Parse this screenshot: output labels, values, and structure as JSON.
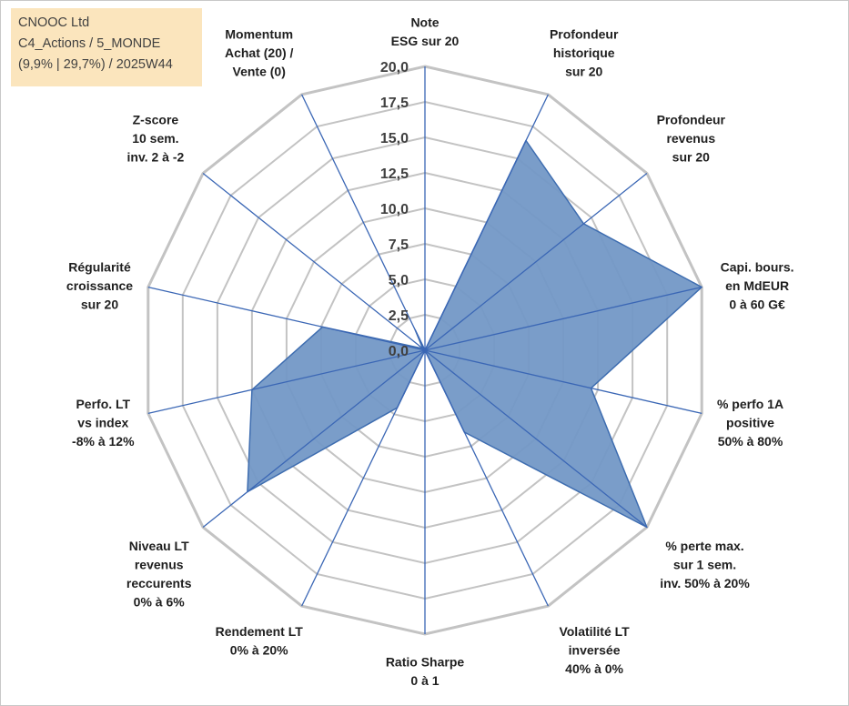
{
  "info_box": {
    "lines": [
      "CNOOC Ltd",
      "C4_Actions / 5_MONDE",
      "(9,9% | 29,7%) / 2025W44"
    ]
  },
  "colors": {
    "fill": "#7398c6",
    "stroke": "#3e6db0",
    "spoke": "#3b67b5",
    "grid": "#c3c3c3",
    "info_bg": "#fbe5bd"
  },
  "chart_data": {
    "type": "radar",
    "rmin": 0,
    "rmax": 20,
    "tick_step": 2.5,
    "tick_labels": [
      "0,0",
      "2,5",
      "5,0",
      "7,5",
      "10,0",
      "12,5",
      "15,0",
      "17,5",
      "20,0"
    ],
    "axes": [
      {
        "label": [
          "Note",
          "ESG sur 20"
        ],
        "value": 0
      },
      {
        "label": [
          "Profondeur",
          "historique",
          "sur 20"
        ],
        "value": 16.4
      },
      {
        "label": [
          "Profondeur",
          "revenus",
          "sur 20"
        ],
        "value": 14.3
      },
      {
        "label": [
          "Capi. bours.",
          "en MdEUR",
          "0 à 60 G€"
        ],
        "value": 20
      },
      {
        "label": [
          "% perfo 1A",
          "positive",
          "50% à 80%"
        ],
        "value": 12.0
      },
      {
        "label": [
          "% perte max.",
          "sur 1 sem.",
          "inv. 50% à 20%"
        ],
        "value": 20
      },
      {
        "label": [
          "Volatilité LT",
          "inversée",
          "40% à 0%"
        ],
        "value": 6.4
      },
      {
        "label": [
          "Ratio Sharpe",
          "0 à 1"
        ],
        "value": 0
      },
      {
        "label": [
          "Rendement LT",
          "0% à 20%"
        ],
        "value": 4.5
      },
      {
        "label": [
          "Niveau LT",
          "revenus",
          "reccurents",
          "0% à 6%"
        ],
        "value": 16.0
      },
      {
        "label": [
          "Perfo. LT",
          "vs index",
          "-8% à 12%"
        ],
        "value": 12.5
      },
      {
        "label": [
          "Régularité",
          "croissance",
          "sur 20"
        ],
        "value": 7.4
      },
      {
        "label": [
          "Z-score",
          "10 sem.",
          "inv. 2 à -2"
        ],
        "value": 0.2
      },
      {
        "label": [
          "Momentum",
          "Achat (20) /",
          "Vente (0)"
        ],
        "value": 1.6
      }
    ]
  }
}
